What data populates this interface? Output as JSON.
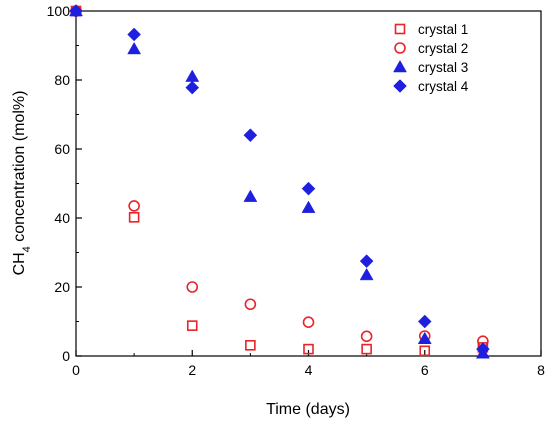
{
  "chart_data": {
    "type": "scatter",
    "title": "",
    "xlabel": "Time (days)",
    "ylabel_prefix": "CH",
    "ylabel_sub": "4",
    "ylabel_suffix": " concentration (mol%)",
    "xlim": [
      0,
      8
    ],
    "ylim": [
      0,
      100
    ],
    "xticks": [
      "0",
      "2",
      "4",
      "6",
      "8"
    ],
    "yticks": [
      "0",
      "20",
      "40",
      "60",
      "80",
      "100"
    ],
    "grid": false,
    "legend_position": "top-right",
    "series": [
      {
        "name": "crystal 1",
        "marker": "square-open",
        "color": "#e8232a",
        "x": [
          0,
          1,
          2,
          3,
          4,
          5,
          6,
          7
        ],
        "y": [
          100,
          40.2,
          8.8,
          3.1,
          2.0,
          2.0,
          1.5,
          2.5
        ]
      },
      {
        "name": "crystal 2",
        "marker": "circle-open",
        "color": "#e8232a",
        "x": [
          0,
          1,
          2,
          3,
          4,
          5,
          6,
          7
        ],
        "y": [
          100,
          43.5,
          20.0,
          15.0,
          9.8,
          5.7,
          5.8,
          4.3
        ]
      },
      {
        "name": "crystal 3",
        "marker": "triangle-filled",
        "color": "#1f1fe0",
        "x": [
          0,
          1,
          2,
          3,
          4,
          5,
          6,
          7
        ],
        "y": [
          100,
          89.0,
          81.0,
          46.2,
          43.0,
          23.5,
          5.0,
          0.8
        ]
      },
      {
        "name": "crystal 4",
        "marker": "diamond-filled",
        "color": "#1f1fe0",
        "x": [
          0,
          1,
          2,
          3,
          4,
          5,
          6,
          7
        ],
        "y": [
          100,
          93.2,
          77.8,
          64.0,
          48.5,
          27.5,
          10.0,
          2.0
        ]
      }
    ]
  }
}
